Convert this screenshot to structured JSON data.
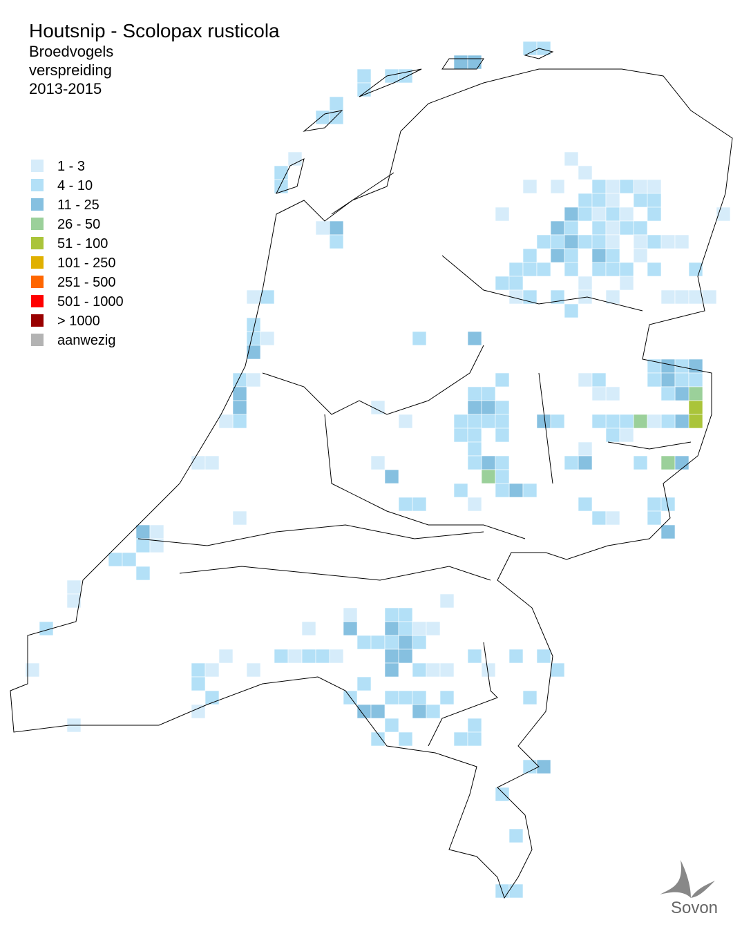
{
  "map": {
    "title": "Houtsnip - Scolopax rusticola",
    "subtitle": [
      "Broedvogels",
      "verspreiding",
      "2013-2015"
    ],
    "legend": [
      {
        "label": "1 - 3",
        "color": "#d6ecfa"
      },
      {
        "label": "4 - 10",
        "color": "#b3e0f7"
      },
      {
        "label": "11 - 25",
        "color": "#86c0e0"
      },
      {
        "label": "26 - 50",
        "color": "#9bd09a"
      },
      {
        "label": "51 - 100",
        "color": "#aac43a"
      },
      {
        "label": "101 - 250",
        "color": "#e0b000"
      },
      {
        "label": "251 - 500",
        "color": "#ff6600"
      },
      {
        "label": "501 - 1000",
        "color": "#ff0000"
      },
      {
        "label": "> 1000",
        "color": "#990000"
      },
      {
        "label": "aanwezig",
        "color": "#b3b3b3"
      }
    ],
    "logo": "Sovon"
  }
}
